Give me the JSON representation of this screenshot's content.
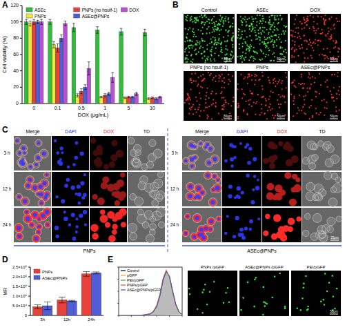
{
  "panel_labels": [
    "A",
    "B",
    "C",
    "D",
    "E"
  ],
  "chart_data": [
    {
      "type": "bar",
      "x_label": "DOX (μg/mL)",
      "y_label": "Cell viability (%)",
      "categories": [
        "0",
        "0.1",
        "0.5",
        "1",
        "5",
        "10"
      ],
      "series": [
        {
          "name": "ASEc",
          "color": "#2fbf3a",
          "values": [
            100,
            100,
            93,
            90,
            88,
            87
          ],
          "errors": [
            3,
            3,
            5,
            4,
            4,
            4
          ]
        },
        {
          "name": "PNPs",
          "color": "#f5e642",
          "values": [
            98,
            72,
            10,
            8,
            7,
            6
          ],
          "errors": [
            3,
            4,
            2,
            1,
            1,
            1
          ]
        },
        {
          "name": "PNPs (no hsulf-1)",
          "color": "#e8403a",
          "values": [
            100,
            68,
            15,
            10,
            8,
            7
          ],
          "errors": [
            3,
            5,
            3,
            2,
            1,
            1
          ]
        },
        {
          "name": "ASEc@PNPs",
          "color": "#4f5ed6",
          "values": [
            100,
            80,
            20,
            12,
            8,
            6
          ],
          "errors": [
            2,
            4,
            3,
            2,
            1,
            1
          ]
        },
        {
          "name": "DOX",
          "color": "#b84fd6",
          "values": [
            100,
            98,
            43,
            32,
            12,
            8
          ],
          "errors": [
            3,
            3,
            8,
            6,
            2,
            1
          ]
        }
      ],
      "ylim": [
        0,
        120
      ],
      "yticks": [
        0,
        20,
        40,
        60,
        80,
        100,
        120
      ],
      "legend": "top"
    },
    {
      "type": "bar",
      "y_label": "MFI",
      "categories": [
        "3h",
        "12h",
        "24h"
      ],
      "series": [
        {
          "name": "PNPs",
          "color": "#e8403a",
          "values": [
            45000,
            80000,
            215000
          ],
          "errors": [
            10000,
            15000,
            12000
          ]
        },
        {
          "name": "ASEc@PNPs",
          "color": "#4f5ed6",
          "values": [
            50000,
            75000,
            220000
          ],
          "errors": [
            20000,
            3000,
            5000
          ]
        }
      ],
      "ylim": [
        0,
        250000
      ],
      "yticks": [
        0,
        {
          "value": 50000,
          "label": "5.0×10⁴"
        },
        {
          "value": 100000,
          "label": "1.0×10⁵"
        },
        {
          "value": 150000,
          "label": "1.5×10⁵"
        },
        {
          "value": 200000,
          "label": "2.0×10⁵"
        },
        {
          "value": 250000,
          "label": "2.5×10⁵"
        }
      ],
      "legend": "top-left"
    },
    {
      "type": "line",
      "x": [
        0,
        1,
        2,
        3,
        4,
        5,
        5.5,
        6,
        6.5,
        7,
        7.5,
        8,
        8.5,
        9,
        9.5,
        10
      ],
      "series": [
        {
          "name": "Control",
          "color": "#000000",
          "values": [
            0,
            0,
            0,
            0,
            1,
            3,
            8,
            18,
            40,
            72,
            92,
            80,
            50,
            22,
            7,
            2
          ]
        },
        {
          "name": "pGFP",
          "color": "#f0a020",
          "values": [
            0,
            0,
            0,
            0,
            1,
            4,
            10,
            22,
            45,
            78,
            95,
            78,
            46,
            20,
            6,
            2
          ]
        },
        {
          "name": "PEI/pGFP",
          "color": "#3aa845",
          "values": [
            0,
            0,
            0,
            0,
            1,
            3,
            9,
            20,
            42,
            75,
            90,
            82,
            52,
            24,
            8,
            2
          ]
        },
        {
          "name": "PNPs/pGFP",
          "color": "#e8403a",
          "values": [
            0,
            0,
            0,
            0,
            1,
            4,
            9,
            21,
            44,
            76,
            93,
            79,
            48,
            21,
            7,
            2
          ]
        },
        {
          "name": "ASEc@PNPs/pGFP",
          "color": "#3050e0",
          "values": [
            0,
            0,
            0,
            0,
            1,
            3,
            8,
            19,
            41,
            74,
            91,
            81,
            51,
            23,
            8,
            2
          ]
        }
      ],
      "xlim": [
        0,
        10
      ],
      "ylim": [
        0,
        100
      ],
      "xticks": [
        0,
        2,
        4,
        6,
        8,
        10
      ],
      "yticks": [
        0,
        25,
        50,
        75,
        100
      ],
      "tick_labels": false,
      "legend": "top-left"
    }
  ],
  "panel_b": {
    "images": [
      {
        "label": "Control",
        "color": "#3be03b"
      },
      {
        "label": "ASEc",
        "color": "#3be03b"
      },
      {
        "label": "DOX",
        "color": "#ff3030"
      },
      {
        "label": "PNPs (no hsulf-1)",
        "color": "#ff3030"
      },
      {
        "label": "PNPs",
        "color": "#ff3030"
      },
      {
        "label": "ASEc@PNPs",
        "color": "#ff3030"
      }
    ],
    "scale_bar": "50μm"
  },
  "panel_c": {
    "groups": [
      "PNPs",
      "ASEc@PNPs"
    ],
    "columns": [
      "Merge",
      "DAPI",
      "DOX",
      "TD"
    ],
    "rows": [
      "3 h",
      "12 h",
      "24 h"
    ],
    "scale_bar": "25μm"
  },
  "panel_e": {
    "images": [
      "PNPs /pGFP",
      "ASEc@PNPs /pGFP",
      "PEI/pGFP"
    ],
    "scale_bar": "50μm"
  }
}
